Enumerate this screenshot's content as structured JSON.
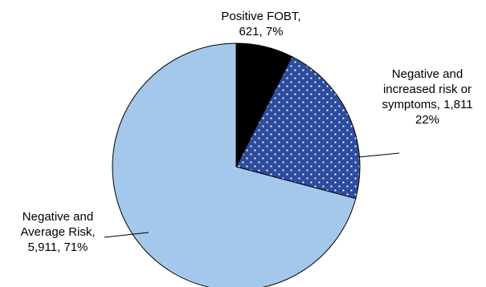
{
  "chart_data": {
    "type": "pie",
    "start_angle_deg": 0,
    "direction": "clockwise",
    "slices": [
      {
        "category": "Positive FOBT",
        "value": 621,
        "percent": 7,
        "color": "#000000",
        "pattern": "solid",
        "label_lines": [
          "Positive FOBT,",
          "621, 7%"
        ]
      },
      {
        "category": "Negative and increased risk or symptoms",
        "value": 1811,
        "percent": 22,
        "color": "#2e4d9e",
        "pattern": "white-dots",
        "label_lines": [
          "Negative and",
          "increased risk or",
          "symptoms, 1,811",
          "22%"
        ]
      },
      {
        "category": "Negative and Average Risk",
        "value": 5911,
        "percent": 71,
        "color": "#a4c8eb",
        "pattern": "solid",
        "label_lines": [
          "Negative and",
          "Average Risk,",
          "5,911, 71%"
        ]
      }
    ]
  }
}
